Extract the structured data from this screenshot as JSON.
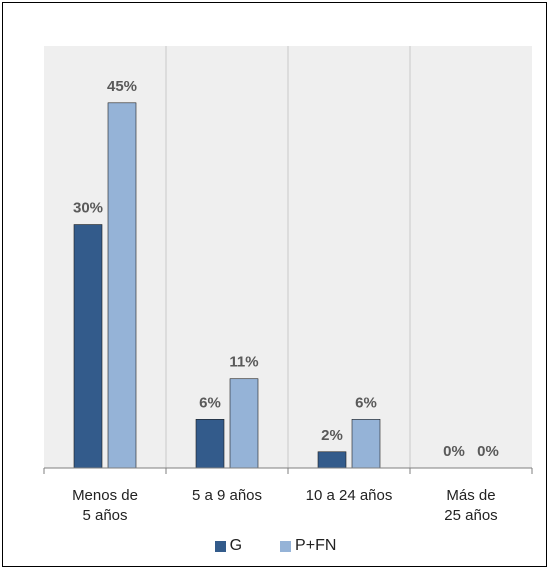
{
  "chart_data": {
    "type": "bar",
    "categories": [
      "Menos de\n5 años",
      "5 a 9 años",
      "10 a 24 años",
      "Más de\n25 años"
    ],
    "series": [
      {
        "name": "G",
        "values": [
          30,
          6,
          2,
          0
        ],
        "labels": [
          "30%",
          "6%",
          "2%",
          "0%"
        ],
        "color": "#335b8b"
      },
      {
        "name": "P+FN",
        "values": [
          45,
          11,
          6,
          0
        ],
        "labels": [
          "45%",
          "11%",
          "6%",
          "0%"
        ],
        "color": "#95b3d7"
      }
    ],
    "title": "",
    "xlabel": "",
    "ylabel": "",
    "ylim": [
      0,
      45
    ],
    "grid": "vertical separators",
    "legend": "bottom",
    "colors": {
      "plot_bg": "#efefef",
      "separator": "#c8c8c8",
      "axis": "#7f7f7f",
      "label": "#595959"
    }
  }
}
